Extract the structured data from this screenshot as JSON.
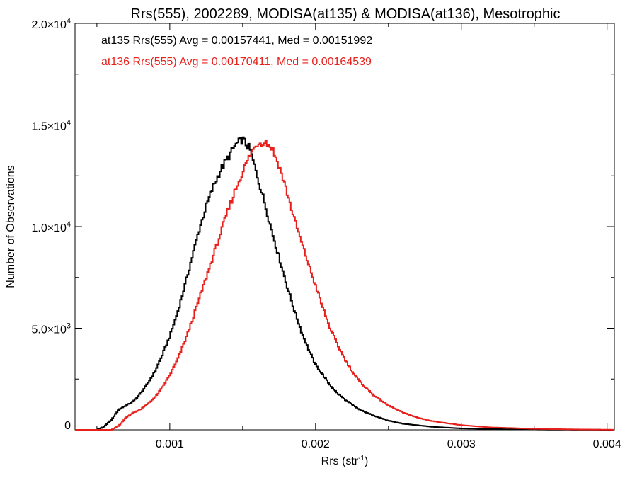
{
  "chart_data": {
    "type": "line",
    "title": "Rrs(555), 2002289, MODISA(at135) & MODISA(at136), Mesotrophic",
    "xlabel": "Rrs (str",
    "xlabel_sup": "-1",
    "xlabel_end": ")",
    "ylabel": "Number of Observations",
    "xlim": [
      0.00035,
      0.00405
    ],
    "ylim": [
      0,
      20000
    ],
    "x_ticks": [
      {
        "value": 0.001,
        "label": "0.001"
      },
      {
        "value": 0.002,
        "label": "0.002"
      },
      {
        "value": 0.003,
        "label": "0.003"
      },
      {
        "value": 0.004,
        "label": "0.004"
      }
    ],
    "y_ticks": [
      {
        "value": 0,
        "mant": "0",
        "exp": ""
      },
      {
        "value": 5000,
        "mant": "5.0×10",
        "exp": "3"
      },
      {
        "value": 10000,
        "mant": "1.0×10",
        "exp": "4"
      },
      {
        "value": 15000,
        "mant": "1.5×10",
        "exp": "4"
      },
      {
        "value": 20000,
        "mant": "2.0×10",
        "exp": "4"
      }
    ],
    "grid": false,
    "legend_position": "top-left",
    "series": [
      {
        "name": "at135",
        "label": "at135 Rrs(555) Avg = 0.00157441, Med = 0.00151992",
        "color": "#000000",
        "points": [
          [
            0.00035,
            0
          ],
          [
            0.0005,
            0
          ],
          [
            0.00055,
            150
          ],
          [
            0.0006,
            500
          ],
          [
            0.00065,
            1000
          ],
          [
            0.0007,
            1200
          ],
          [
            0.00075,
            1400
          ],
          [
            0.0008,
            1800
          ],
          [
            0.00085,
            2300
          ],
          [
            0.0009,
            2900
          ],
          [
            0.00095,
            3700
          ],
          [
            0.001,
            4600
          ],
          [
            0.00105,
            5700
          ],
          [
            0.0011,
            7000
          ],
          [
            0.00115,
            8400
          ],
          [
            0.0012,
            9800
          ],
          [
            0.00125,
            11000
          ],
          [
            0.0013,
            12000
          ],
          [
            0.00135,
            12800
          ],
          [
            0.0014,
            13400
          ],
          [
            0.00145,
            14000
          ],
          [
            0.0015,
            14300
          ],
          [
            0.00155,
            13800
          ],
          [
            0.0016,
            12500
          ],
          [
            0.00165,
            11200
          ],
          [
            0.0017,
            9800
          ],
          [
            0.00175,
            8500
          ],
          [
            0.0018,
            7200
          ],
          [
            0.00185,
            6000
          ],
          [
            0.0019,
            4900
          ],
          [
            0.00195,
            4000
          ],
          [
            0.002,
            3200
          ],
          [
            0.00205,
            2700
          ],
          [
            0.0021,
            2200
          ],
          [
            0.00215,
            1800
          ],
          [
            0.0022,
            1500
          ],
          [
            0.0023,
            1000
          ],
          [
            0.0024,
            700
          ],
          [
            0.0025,
            450
          ],
          [
            0.0026,
            300
          ],
          [
            0.0028,
            150
          ],
          [
            0.003,
            70
          ],
          [
            0.0033,
            30
          ],
          [
            0.0036,
            10
          ],
          [
            0.00405,
            0
          ]
        ]
      },
      {
        "name": "at136",
        "label": "at136 Rrs(555) Avg = 0.00170411, Med = 0.00164539",
        "color": "#e8201c",
        "points": [
          [
            0.00035,
            0
          ],
          [
            0.0006,
            0
          ],
          [
            0.00065,
            200
          ],
          [
            0.0007,
            600
          ],
          [
            0.00075,
            850
          ],
          [
            0.0008,
            1000
          ],
          [
            0.00085,
            1300
          ],
          [
            0.0009,
            1600
          ],
          [
            0.00095,
            2100
          ],
          [
            0.001,
            2700
          ],
          [
            0.00105,
            3400
          ],
          [
            0.0011,
            4300
          ],
          [
            0.00115,
            5300
          ],
          [
            0.0012,
            6400
          ],
          [
            0.00125,
            7500
          ],
          [
            0.0013,
            8600
          ],
          [
            0.00135,
            9700
          ],
          [
            0.0014,
            10800
          ],
          [
            0.00145,
            11800
          ],
          [
            0.0015,
            12700
          ],
          [
            0.00155,
            13500
          ],
          [
            0.0016,
            14100
          ],
          [
            0.00165,
            14200
          ],
          [
            0.0017,
            13900
          ],
          [
            0.00175,
            13000
          ],
          [
            0.0018,
            11800
          ],
          [
            0.00185,
            10500
          ],
          [
            0.0019,
            9300
          ],
          [
            0.00195,
            8200
          ],
          [
            0.002,
            7100
          ],
          [
            0.00205,
            6000
          ],
          [
            0.0021,
            5000
          ],
          [
            0.00215,
            4200
          ],
          [
            0.0022,
            3500
          ],
          [
            0.00225,
            2900
          ],
          [
            0.0023,
            2400
          ],
          [
            0.0024,
            1700
          ],
          [
            0.0025,
            1200
          ],
          [
            0.0026,
            850
          ],
          [
            0.0027,
            600
          ],
          [
            0.0028,
            430
          ],
          [
            0.003,
            230
          ],
          [
            0.0032,
            120
          ],
          [
            0.0035,
            50
          ],
          [
            0.0038,
            20
          ],
          [
            0.00405,
            5
          ]
        ]
      }
    ]
  }
}
